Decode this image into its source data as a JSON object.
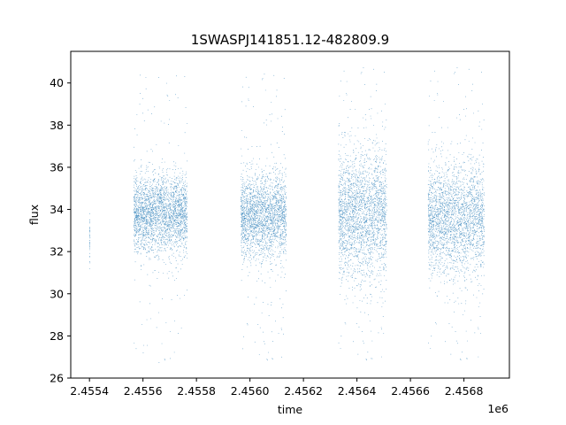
{
  "chart_data": {
    "type": "scatter",
    "title": "1SWASPJ141851.12-482809.9",
    "xlabel": "time",
    "ylabel": "flux",
    "x_offset_label": "1e6",
    "xlim": [
      2455330,
      2456970
    ],
    "ylim": [
      26,
      41.5
    ],
    "x_ticks": [
      2455400,
      2455600,
      2455800,
      2456000,
      2456200,
      2456400,
      2456600,
      2456800
    ],
    "x_tick_labels": [
      "2.4554",
      "2.4556",
      "2.4558",
      "2.4560",
      "2.4562",
      "2.4564",
      "2.4566",
      "2.4568"
    ],
    "y_ticks": [
      26,
      28,
      30,
      32,
      34,
      36,
      38,
      40
    ],
    "y_tick_labels": [
      "26",
      "28",
      "30",
      "32",
      "34",
      "36",
      "38",
      "40"
    ],
    "grid": false,
    "legend": "none",
    "marker_color": "#1f77b4",
    "clusters": [
      {
        "x_range": [
          2455399,
          2455401
        ],
        "y_center": 32.6,
        "y_spread": 0.6,
        "y_range": [
          31.2,
          34.2
        ]
      },
      {
        "x_range": [
          2455565,
          2455765
        ],
        "y_center": 33.8,
        "y_spread": 0.9,
        "y_range": [
          26.7,
          40.7
        ]
      },
      {
        "x_range": [
          2455965,
          2456135
        ],
        "y_center": 33.7,
        "y_spread": 1.0,
        "y_range": [
          26.7,
          40.6
        ]
      },
      {
        "x_range": [
          2456330,
          2456510
        ],
        "y_center": 33.8,
        "y_spread": 1.5,
        "y_range": [
          26.7,
          40.9
        ]
      },
      {
        "x_range": [
          2456665,
          2456875
        ],
        "y_center": 33.6,
        "y_spread": 1.3,
        "y_range": [
          26.7,
          40.9
        ]
      }
    ]
  }
}
